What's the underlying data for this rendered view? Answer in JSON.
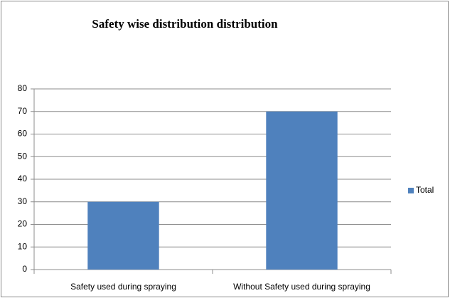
{
  "chart_data": {
    "type": "bar",
    "title": "Safety wise distribution distribution",
    "categories": [
      "Safety used during spraying",
      "Without Safety used during spraying"
    ],
    "series": [
      {
        "name": "Total",
        "color": "#4f81bd",
        "values": [
          30,
          70
        ]
      }
    ],
    "ylim": [
      0,
      80
    ],
    "yticks": [
      0,
      10,
      20,
      30,
      40,
      50,
      60,
      70,
      80
    ],
    "grid": true,
    "legend": "right"
  }
}
